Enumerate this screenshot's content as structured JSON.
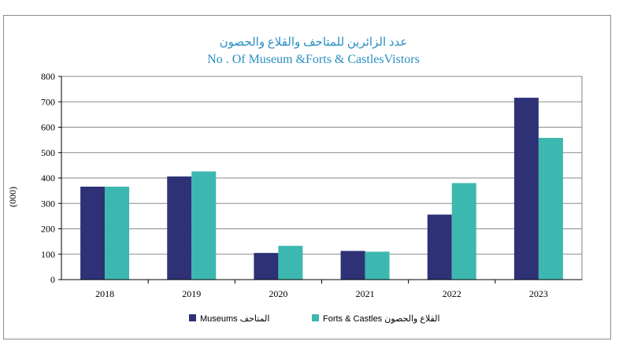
{
  "chart_data": {
    "type": "bar",
    "title": "عدد الزائرين للمتاحف والقلاع والحصون",
    "subtitle": "No . Of Museum &Forts & CastlesVistors",
    "ylabel": "(000)",
    "xlabel": "",
    "categories": [
      "2018",
      "2019",
      "2020",
      "2021",
      "2022",
      "2023"
    ],
    "series": [
      {
        "name": "Museums المتاحف",
        "color": "#2e3175",
        "values": [
          366,
          406,
          105,
          113,
          256,
          716
        ]
      },
      {
        "name": "Forts & Castles القلاع والحصون",
        "color": "#3db8b0",
        "values": [
          366,
          426,
          133,
          110,
          380,
          558
        ]
      }
    ],
    "ylim": [
      0,
      800
    ],
    "yticks": [
      0,
      100,
      200,
      300,
      400,
      500,
      600,
      700,
      800
    ],
    "grid": true,
    "legend": "bottom-center"
  }
}
